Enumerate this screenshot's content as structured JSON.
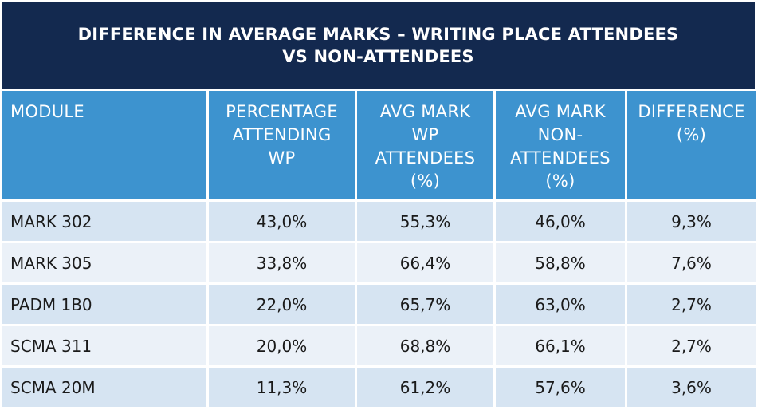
{
  "title": "DIFFERENCE IN AVERAGE MARKS – WRITING PLACE ATTENDEES VS NON-ATTENDEES",
  "colors": {
    "title_bg": "#13294f",
    "header_bg": "#3d93cf",
    "row_odd_bg": "#d6e4f2",
    "row_even_bg": "#ebf1f8",
    "header_text": "#ffffff",
    "body_text": "#1a1a1a"
  },
  "table": {
    "headers": [
      "MODULE",
      "PERCENTAGE ATTENDING WP",
      "AVG MARK WP ATTENDEES (%)",
      "AVG MARK NON-ATTENDEES (%)",
      "DIFFERENCE (%)"
    ],
    "rows": [
      [
        "MARK 302",
        "43,0%",
        "55,3%",
        "46,0%",
        "9,3%"
      ],
      [
        "MARK 305",
        "33,8%",
        "66,4%",
        "58,8%",
        "7,6%"
      ],
      [
        "PADM 1B0",
        "22,0%",
        "65,7%",
        "63,0%",
        "2,7%"
      ],
      [
        "SCMA 311",
        "20,0%",
        "68,8%",
        "66,1%",
        "2,7%"
      ],
      [
        "SCMA 20M",
        "11,3%",
        "61,2%",
        "57,6%",
        "3,6%"
      ]
    ]
  }
}
